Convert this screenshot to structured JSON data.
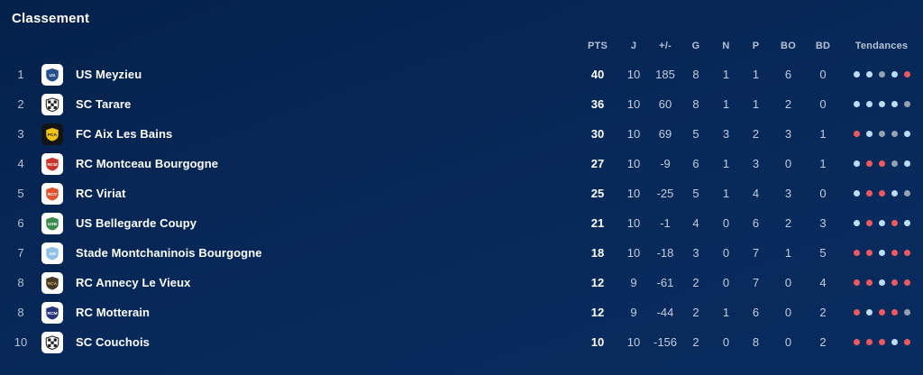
{
  "title": "Classement",
  "colors": {
    "background": "#07295a",
    "text_primary": "#ffffff",
    "text_secondary": "#c2cdde",
    "header_text": "#b4c1d4",
    "dot_blue": "#bcdcf7",
    "dot_red": "#ef5a61",
    "dot_gray": "#96a0ae"
  },
  "table": {
    "columns": [
      {
        "key": "pts",
        "label": "PTS"
      },
      {
        "key": "j",
        "label": "J"
      },
      {
        "key": "diff",
        "label": "+/-"
      },
      {
        "key": "g",
        "label": "G"
      },
      {
        "key": "n",
        "label": "N"
      },
      {
        "key": "p",
        "label": "P"
      },
      {
        "key": "bo",
        "label": "BO"
      },
      {
        "key": "bd",
        "label": "BD"
      },
      {
        "key": "trend",
        "label": "Tendances"
      }
    ],
    "rows": [
      {
        "rank": "1",
        "team": "US Meyzieu",
        "crest": {
          "tile": "#ffffff",
          "fill": "#27508f",
          "initials": "US",
          "text": "#ffffff",
          "checker": false
        },
        "pts": "40",
        "j": "10",
        "diff": "185",
        "g": "8",
        "n": "1",
        "p": "1",
        "bo": "6",
        "bd": "0",
        "trend": [
          "blue",
          "blue",
          "gray",
          "blue",
          "red"
        ]
      },
      {
        "rank": "2",
        "team": "SC Tarare",
        "crest": {
          "tile": "#ffffff",
          "fill": "#1c1c1c",
          "initials": "",
          "text": "#ffffff",
          "checker": true
        },
        "pts": "36",
        "j": "10",
        "diff": "60",
        "g": "8",
        "n": "1",
        "p": "1",
        "bo": "2",
        "bd": "0",
        "trend": [
          "blue",
          "blue",
          "blue",
          "blue",
          "gray"
        ]
      },
      {
        "rank": "3",
        "team": "FC Aix Les Bains",
        "crest": {
          "tile": "#141414",
          "fill": "#f2c318",
          "initials": "FCA",
          "text": "#141414",
          "checker": false
        },
        "pts": "30",
        "j": "10",
        "diff": "69",
        "g": "5",
        "n": "3",
        "p": "2",
        "bo": "3",
        "bd": "1",
        "trend": [
          "red",
          "blue",
          "gray",
          "gray",
          "blue"
        ]
      },
      {
        "rank": "4",
        "team": "RC Montceau Bourgogne",
        "crest": {
          "tile": "#ffffff",
          "fill": "#c9342f",
          "initials": "RCM",
          "text": "#ffffff",
          "checker": false
        },
        "pts": "27",
        "j": "10",
        "diff": "-9",
        "g": "6",
        "n": "1",
        "p": "3",
        "bo": "0",
        "bd": "1",
        "trend": [
          "blue",
          "red",
          "red",
          "gray",
          "blue"
        ]
      },
      {
        "rank": "5",
        "team": "RC Viriat",
        "crest": {
          "tile": "#ffffff",
          "fill": "#e0542f",
          "initials": "RCV",
          "text": "#ffffff",
          "checker": false
        },
        "pts": "25",
        "j": "10",
        "diff": "-25",
        "g": "5",
        "n": "1",
        "p": "4",
        "bo": "3",
        "bd": "0",
        "trend": [
          "blue",
          "red",
          "red",
          "blue",
          "gray"
        ]
      },
      {
        "rank": "6",
        "team": "US Bellegarde Coupy",
        "crest": {
          "tile": "#ffffff",
          "fill": "#3a8a4d",
          "initials": "USB",
          "text": "#ffffff",
          "checker": false
        },
        "pts": "21",
        "j": "10",
        "diff": "-1",
        "g": "4",
        "n": "0",
        "p": "6",
        "bo": "2",
        "bd": "3",
        "trend": [
          "blue",
          "red",
          "blue",
          "red",
          "blue"
        ]
      },
      {
        "rank": "7",
        "team": "Stade Montchaninois Bourgogne",
        "crest": {
          "tile": "#ffffff",
          "fill": "#8fc1e8",
          "initials": "SM",
          "text": "#ffffff",
          "checker": false
        },
        "pts": "18",
        "j": "10",
        "diff": "-18",
        "g": "3",
        "n": "0",
        "p": "7",
        "bo": "1",
        "bd": "5",
        "trend": [
          "red",
          "red",
          "blue",
          "red",
          "red"
        ]
      },
      {
        "rank": "8",
        "team": "RC Annecy Le Vieux",
        "crest": {
          "tile": "#ffffff",
          "fill": "#4a3a28",
          "initials": "RCA",
          "text": "#d8b25a",
          "checker": false
        },
        "pts": "12",
        "j": "9",
        "diff": "-61",
        "g": "2",
        "n": "0",
        "p": "7",
        "bo": "0",
        "bd": "4",
        "trend": [
          "red",
          "red",
          "blue",
          "red",
          "red"
        ]
      },
      {
        "rank": "8",
        "team": "RC Motterain",
        "crest": {
          "tile": "#ffffff",
          "fill": "#27357e",
          "initials": "RCM",
          "text": "#ffffff",
          "checker": false
        },
        "pts": "12",
        "j": "9",
        "diff": "-44",
        "g": "2",
        "n": "1",
        "p": "6",
        "bo": "0",
        "bd": "2",
        "trend": [
          "red",
          "blue",
          "red",
          "red",
          "gray"
        ]
      },
      {
        "rank": "10",
        "team": "SC Couchois",
        "crest": {
          "tile": "#ffffff",
          "fill": "#1c1c1c",
          "initials": "",
          "text": "#ffffff",
          "checker": true
        },
        "pts": "10",
        "j": "10",
        "diff": "-156",
        "g": "2",
        "n": "0",
        "p": "8",
        "bo": "0",
        "bd": "2",
        "trend": [
          "red",
          "red",
          "red",
          "blue",
          "red"
        ]
      }
    ]
  }
}
